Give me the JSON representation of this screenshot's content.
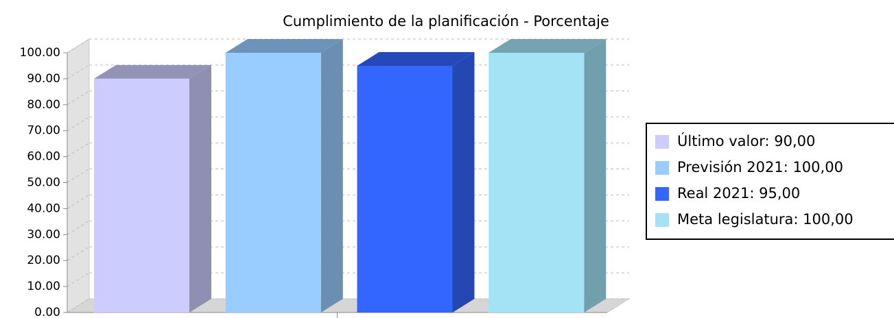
{
  "chart_data": {
    "type": "bar3d",
    "title": "Cumplimiento de la planificación - Porcentaje",
    "categories": [
      null
    ],
    "series": [
      {
        "name": "Último valor: 90,00",
        "color": "#ccccff",
        "values": [
          90
        ]
      },
      {
        "name": "Previsión 2021: 100,00",
        "color": "#99ccff",
        "values": [
          100
        ]
      },
      {
        "name": "Real 2021: 95,00",
        "color": "#3366ff",
        "values": [
          95
        ]
      },
      {
        "name": "Meta legislatura: 100,00",
        "color": "#a3e3f5",
        "values": [
          100
        ]
      }
    ],
    "ylim": [
      0,
      100
    ],
    "yticks": [
      {
        "value": 0,
        "label": "0.00"
      },
      {
        "value": 10,
        "label": "10.00"
      },
      {
        "value": 20,
        "label": "20.00"
      },
      {
        "value": 30,
        "label": "30.00"
      },
      {
        "value": 40,
        "label": "40.00"
      },
      {
        "value": 50,
        "label": "50.00"
      },
      {
        "value": 60,
        "label": "60.00"
      },
      {
        "value": 70,
        "label": "70.00"
      },
      {
        "value": 80,
        "label": "80.00"
      },
      {
        "value": 90,
        "label": "90.00"
      },
      {
        "value": 100,
        "label": "100.00"
      }
    ],
    "grid": true,
    "legend": "right"
  }
}
